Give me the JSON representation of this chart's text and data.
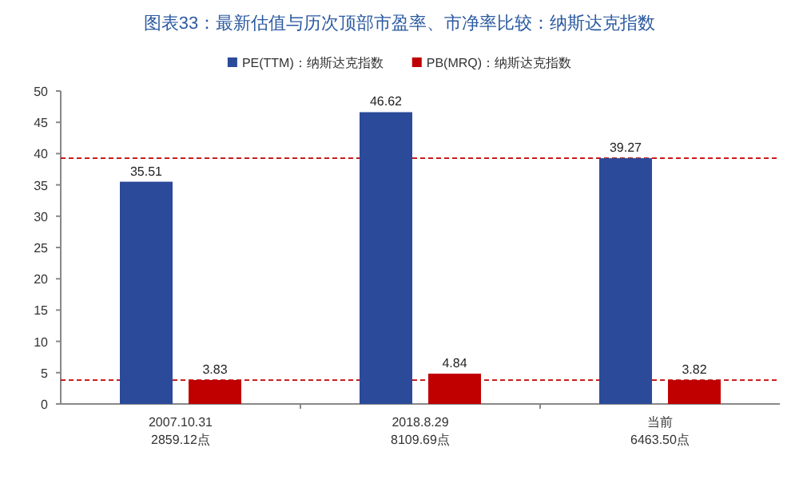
{
  "chart_data": {
    "type": "bar",
    "title": "图表33：最新估值与历次顶部市盈率、市净率比较：纳斯达克指数",
    "categories": [
      "2007.10.31\n2859.12点",
      "2018.8.29\n8109.69点",
      "当前\n6463.50点"
    ],
    "series": [
      {
        "name": "PE(TTM)：纳斯达克指数",
        "color": "#2b4a9a",
        "values": [
          35.51,
          46.62,
          39.27
        ]
      },
      {
        "name": "PB(MRQ)：纳斯达克指数",
        "color": "#c00000",
        "values": [
          3.83,
          4.84,
          3.82
        ]
      }
    ],
    "ylim": [
      0,
      50
    ],
    "yticks": [
      0,
      5,
      10,
      15,
      20,
      25,
      30,
      35,
      40,
      45,
      50
    ],
    "ref_lines": [
      {
        "axis": "y",
        "value": 39.27,
        "color": "#c00000",
        "line_style": "dashed"
      },
      {
        "axis": "y",
        "value": 3.82,
        "color": "#c00000",
        "line_style": "dashed"
      }
    ],
    "data_labels": true,
    "legend": "top",
    "grid": false
  }
}
